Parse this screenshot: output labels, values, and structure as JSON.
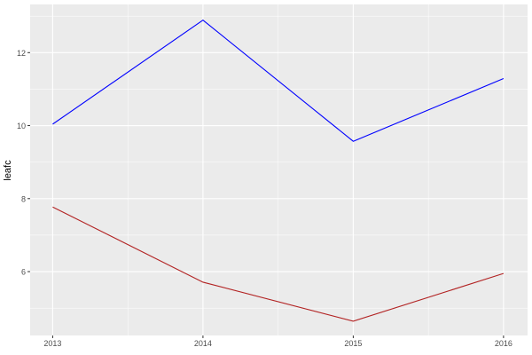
{
  "chart_data": {
    "type": "line",
    "title": "",
    "xlabel": "",
    "ylabel": "leafc",
    "x": [
      2013,
      2014,
      2015,
      2016
    ],
    "x_ticks": [
      "2013",
      "2014",
      "2015",
      "2016"
    ],
    "y_ticks": [
      "6",
      "8",
      "10",
      "12"
    ],
    "xlim": [
      2012.85,
      2016.16
    ],
    "ylim": [
      4.25,
      13.32
    ],
    "grid": true,
    "background": "#EBEBEB",
    "series": [
      {
        "color": "#0000FF",
        "values": [
          10.04,
          12.89,
          9.57,
          11.29
        ]
      },
      {
        "color": "#B22222",
        "values": [
          7.77,
          5.71,
          4.64,
          5.95
        ]
      }
    ]
  }
}
